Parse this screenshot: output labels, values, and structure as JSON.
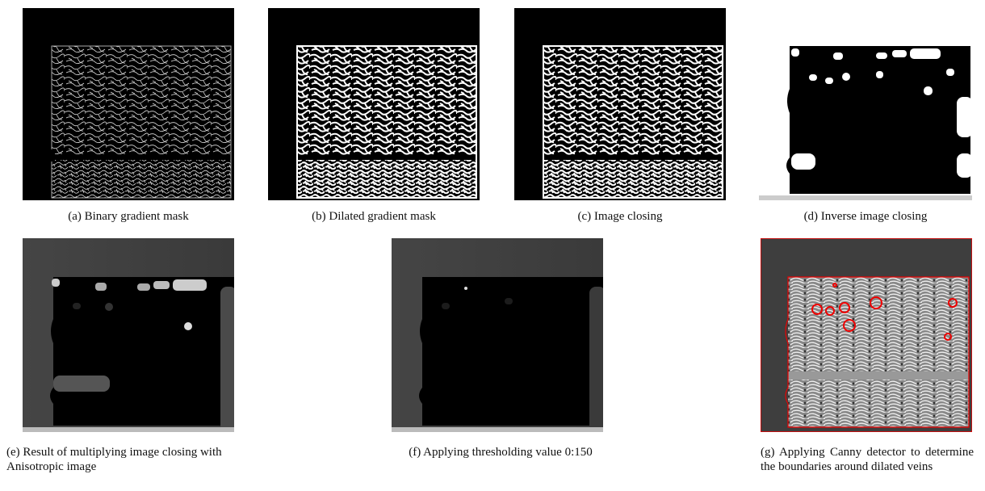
{
  "figure": {
    "panels": [
      {
        "caption": "(a) Binary gradient mask"
      },
      {
        "caption": "(b) Dilated gradient mask"
      },
      {
        "caption": "(c) Image closing"
      },
      {
        "caption": "(d) Inverse image closing"
      },
      {
        "caption": "(e) Result of multiplying image closing with Anisotropic image"
      },
      {
        "caption": "(f) Applying thresholding value 0:150"
      },
      {
        "caption": "(g) Applying Canny detector to determine the boundaries around dilated veins"
      }
    ]
  }
}
